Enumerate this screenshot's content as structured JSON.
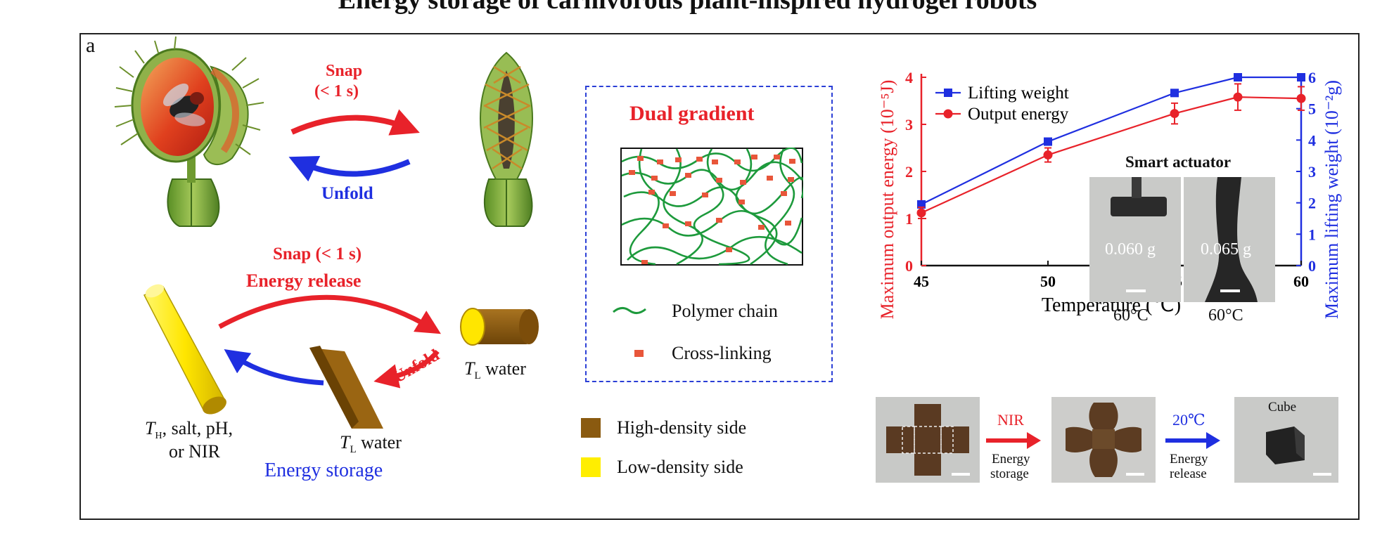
{
  "figure": {
    "title": "Energy storage of carnivorous plant-inspired hydrogel robots",
    "panel_label": "a"
  },
  "plant": {
    "snap_label": "Snap",
    "snap_time": "(< 1 s)",
    "unfold_label": "Unfold"
  },
  "film": {
    "snap_label": "Snap (< 1 s)",
    "release_label": "Energy release",
    "unfold_label": "Unfold",
    "tl_water_right": "water",
    "tl_water_bottom": "water",
    "th_line1": "salt, pH,",
    "th_line2": "or NIR",
    "storage_label": "Energy storage",
    "t_symbol": "T",
    "h_sub": "H",
    "l_sub": "L"
  },
  "gradient": {
    "title": "Dual gradient",
    "legend_chain": "Polymer chain",
    "legend_crosslink": "Cross-linking"
  },
  "density_legend": {
    "high": "High-density side",
    "low": "Low-density side"
  },
  "colors": {
    "red": "#e8222a",
    "blue": "#1f2fe0",
    "chain_green": "#1d9a3c",
    "crosslink": "#e8563a",
    "high_density": "#8a5a10",
    "low_density": "#ffee00"
  },
  "chart_data": {
    "type": "line",
    "x": [
      45,
      50,
      55,
      57.5,
      60
    ],
    "series": [
      {
        "name": "Lifting weight",
        "axis": "right",
        "color": "#1f2fe0",
        "marker": "square",
        "values": [
          1.95,
          3.95,
          5.5,
          6.0,
          6.0
        ]
      },
      {
        "name": "Output energy",
        "axis": "left",
        "color": "#e8222a",
        "marker": "circle",
        "values": [
          1.12,
          2.35,
          3.23,
          3.58,
          3.55
        ],
        "errors": [
          0.12,
          0.15,
          0.22,
          0.28,
          0.25
        ]
      }
    ],
    "xlabel": "Temperature (℃)",
    "ylabel_left": "Maximum output energy (10⁻⁵J)",
    "ylabel_right": "Maximum lifting weight (10⁻²g)",
    "xlim": [
      45,
      60
    ],
    "ylim_left": [
      0,
      4
    ],
    "ylim_right": [
      0,
      6
    ],
    "x_ticks": [
      45,
      50,
      55,
      60
    ],
    "y_ticks_left": [
      0,
      1,
      2,
      3,
      4
    ],
    "y_ticks_right": [
      0,
      1,
      2,
      3,
      4,
      5,
      6
    ],
    "legend_position": "top-left",
    "grid": false
  },
  "inset": {
    "title": "Smart actuator",
    "weight1": "0.060 g",
    "weight2": "0.065 g",
    "temp1": "60°C",
    "temp2": "60°C"
  },
  "sequence": {
    "nir_label": "NIR",
    "nir_sub1": "Energy",
    "nir_sub2": "storage",
    "cold_label": "20℃",
    "cold_sub1": "Energy",
    "cold_sub2": "release",
    "cube_label": "Cube"
  }
}
